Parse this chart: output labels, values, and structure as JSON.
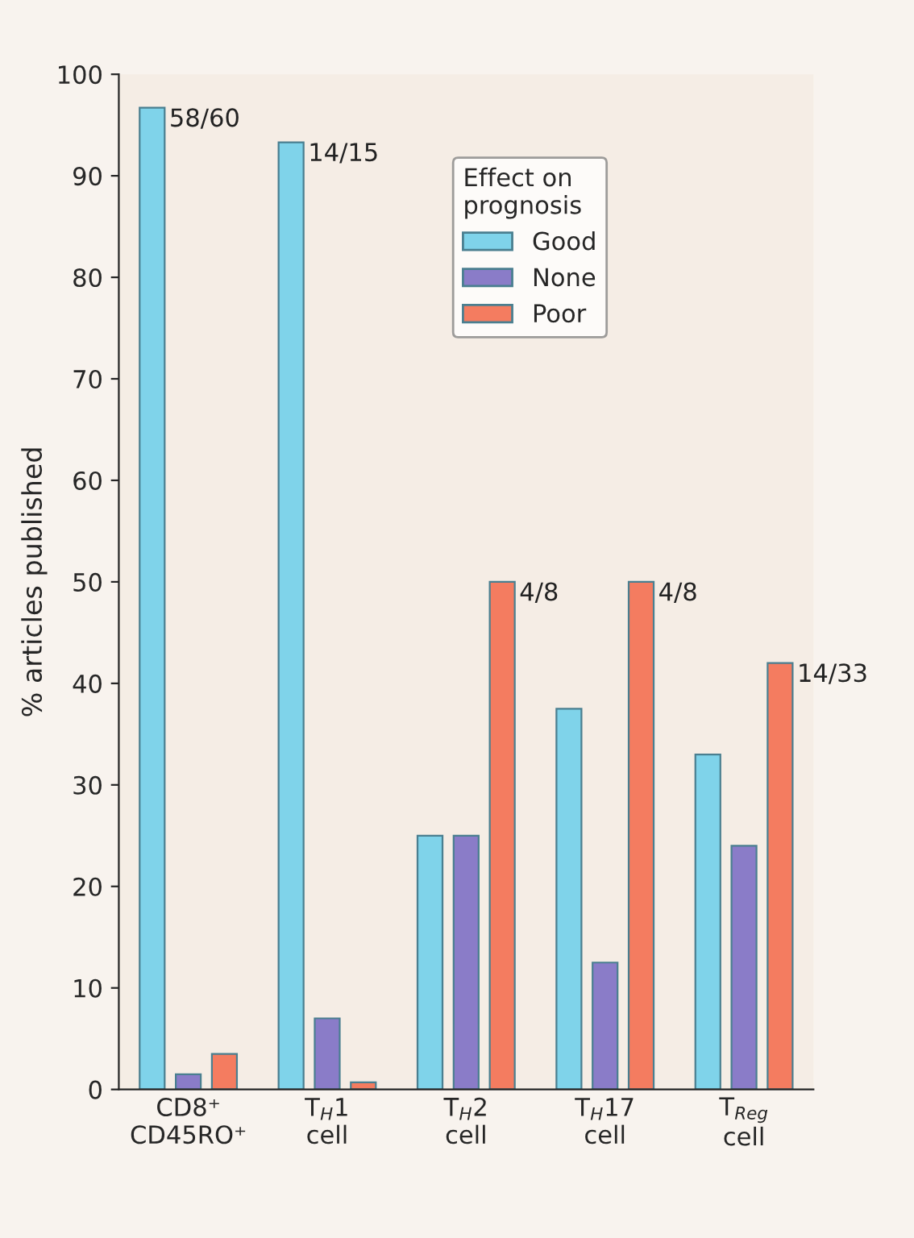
{
  "chart_data": {
    "type": "bar",
    "ylabel": "% articles published",
    "legend_title": "Effect on\nprognosis",
    "categories": [
      "CD8⁺\nCD45RO⁺",
      "T$_{H}$1\ncell",
      "T$_{H}$2\ncell",
      "T$_{H}$17\ncell",
      "T$_{Reg}$\ncell"
    ],
    "series": [
      {
        "name": "Good",
        "color": "#7fd3ea",
        "values": [
          96.7,
          93.3,
          25,
          37.5,
          33
        ]
      },
      {
        "name": "None",
        "color": "#8a7cc8",
        "values": [
          1.5,
          7,
          25,
          12.5,
          24
        ]
      },
      {
        "name": "Poor",
        "color": "#f47c60",
        "values": [
          3.5,
          0.7,
          50,
          50,
          42
        ]
      }
    ],
    "annotations": [
      "58/60",
      "14/15",
      "4/8",
      "4/8",
      "14/33"
    ],
    "ylim": [
      0,
      100
    ],
    "yticks": [
      0,
      10,
      20,
      30,
      40,
      50,
      60,
      70,
      80,
      90,
      100
    ],
    "grid": false,
    "legend": "top right"
  }
}
